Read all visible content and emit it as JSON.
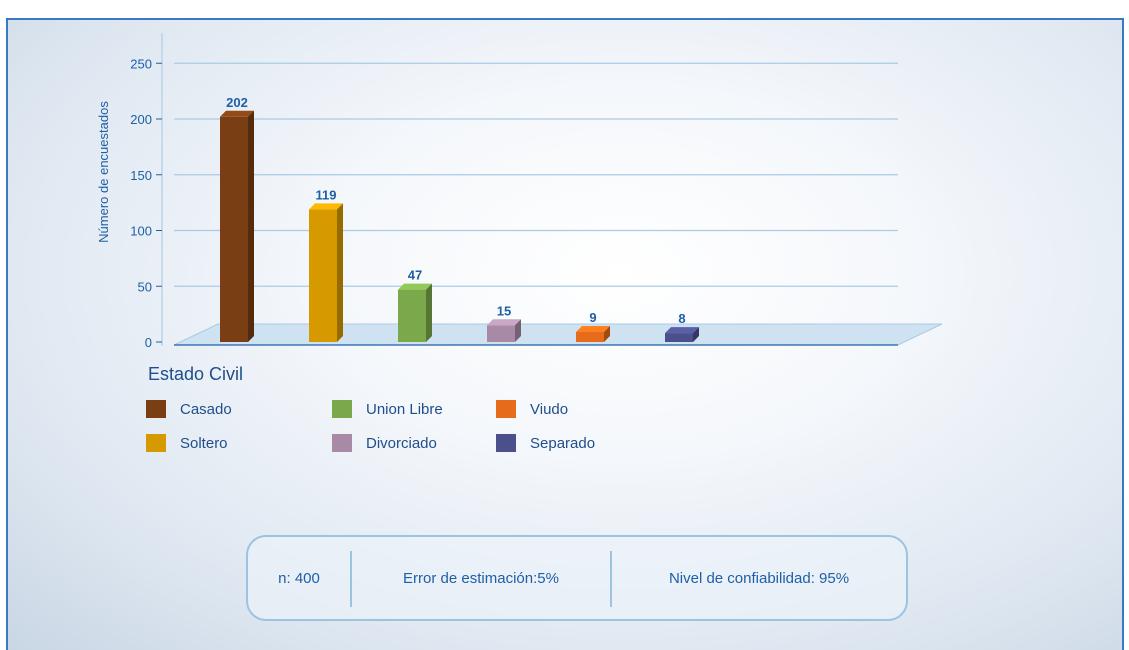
{
  "chart_data": {
    "type": "bar",
    "categories": [
      "Casado",
      "Soltero",
      "Union Libre",
      "Divorciado",
      "Viudo",
      "Separado"
    ],
    "values": [
      202,
      119,
      47,
      15,
      9,
      8
    ],
    "ylabel": "Número de encuestados",
    "xlabel": "Estado Civil",
    "ylim": [
      0,
      250
    ],
    "yticks": [
      0,
      50,
      100,
      150,
      200,
      250
    ],
    "grid": true,
    "legend_placement": "bottom"
  },
  "colors": {
    "Casado": "#7a3e14",
    "Soltero": "#d69a00",
    "Union Libre": "#7aa84a",
    "Divorciado": "#a88aa6",
    "Viudo": "#e66b1a",
    "Separado": "#4b4f8c"
  },
  "legend": {
    "title": "Estado Civil",
    "items": [
      {
        "label": "Casado"
      },
      {
        "label": "Soltero"
      },
      {
        "label": "Union Libre"
      },
      {
        "label": "Divorciado"
      },
      {
        "label": "Viudo"
      },
      {
        "label": "Separado"
      }
    ]
  },
  "stats": {
    "n": "n: 400",
    "error": "Error de estimación:5%",
    "confidence": "Nivel de confiabilidad: 95%"
  }
}
